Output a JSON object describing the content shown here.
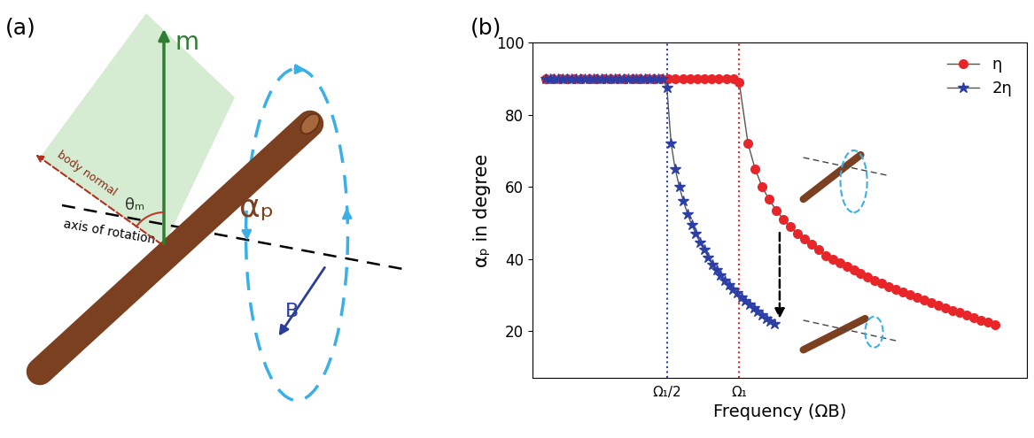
{
  "diagram": {
    "label": "(a)",
    "moment": "m",
    "angle": "θₘ",
    "body_normal": "body normal",
    "rotation_axis": "axis of rotation",
    "precession_angle": "αₚ",
    "field": "B"
  },
  "chart_data": {
    "type": "line",
    "panel_label": "(b)",
    "x_label": "Frequency (ΩB)",
    "y_label": "αₚ in degree",
    "xlim": [
      -0.43,
      2.99
    ],
    "ylim": [
      7,
      100
    ],
    "xticks": [
      {
        "value": 0.5,
        "label": "Ω₁/2"
      },
      {
        "value": 1,
        "label": "Ω₁"
      }
    ],
    "yticks": [
      20,
      40,
      60,
      80,
      100
    ],
    "legend": "upper right",
    "series": [
      {
        "name": "η",
        "color": "#e8262a",
        "marker": "circle",
        "x": [
          -0.34,
          -0.29,
          -0.24,
          -0.19,
          -0.14,
          -0.09,
          -0.04,
          0.01,
          0.06,
          0.11,
          0.16,
          0.21,
          0.26,
          0.31,
          0.36,
          0.41,
          0.46,
          0.51,
          0.56,
          0.61,
          0.66,
          0.71,
          0.76,
          0.81,
          0.86,
          0.91,
          0.96,
          1.0,
          1.061,
          1.11,
          1.159,
          1.207,
          1.256,
          1.305,
          1.354,
          1.402,
          1.451,
          1.5,
          1.549,
          1.598,
          1.646,
          1.695,
          1.744,
          1.793,
          1.841,
          1.89,
          1.939,
          1.988,
          2.037,
          2.085,
          2.134,
          2.183,
          2.232,
          2.28,
          2.329,
          2.378,
          2.427,
          2.476,
          2.524,
          2.573,
          2.622,
          2.671,
          2.72,
          2.768
        ],
        "values": [
          90,
          90,
          90,
          90,
          90,
          90,
          90,
          90,
          90,
          90,
          90,
          90,
          90,
          90,
          90,
          90,
          90,
          90,
          90,
          90,
          90,
          90,
          90,
          90,
          90,
          90,
          90,
          89,
          72,
          65,
          60,
          56.5,
          53.5,
          51,
          49,
          47,
          45.5,
          44,
          42.5,
          41,
          40,
          39,
          38,
          37,
          36,
          35,
          34,
          33.2,
          32.4,
          31.6,
          30.8,
          30,
          29.3,
          28.6,
          27.9,
          27.2,
          26.5,
          25.8,
          25.1,
          24.4,
          23.7,
          23,
          22.4,
          21.8
        ]
      },
      {
        "name": "2η",
        "color": "#2c3fa6",
        "marker": "star",
        "x": [
          -0.34,
          -0.31,
          -0.28,
          -0.25,
          -0.22,
          -0.19,
          -0.16,
          -0.13,
          -0.1,
          -0.07,
          -0.04,
          -0.01,
          0.02,
          0.05,
          0.08,
          0.11,
          0.14,
          0.17,
          0.2,
          0.23,
          0.26,
          0.29,
          0.32,
          0.35,
          0.38,
          0.41,
          0.44,
          0.47,
          0.5,
          0.529,
          0.557,
          0.586,
          0.614,
          0.643,
          0.671,
          0.7,
          0.729,
          0.757,
          0.786,
          0.814,
          0.843,
          0.871,
          0.9,
          0.929,
          0.957,
          0.986,
          1.014,
          1.043,
          1.071,
          1.1,
          1.129,
          1.157,
          1.186,
          1.214,
          1.243
        ],
        "values": [
          90,
          90,
          90,
          90,
          90,
          90,
          90,
          90,
          90,
          90,
          90,
          90,
          90,
          90,
          90,
          90,
          90,
          90,
          90,
          90,
          90,
          90,
          90,
          90,
          90,
          90,
          90,
          90,
          87.5,
          72,
          65,
          60,
          56,
          52.5,
          49.5,
          47,
          44.5,
          42.5,
          40.5,
          38.5,
          37,
          35.5,
          34,
          32.8,
          31.6,
          30.5,
          29.4,
          28.4,
          27.4,
          26.4,
          25.4,
          24.5,
          23.6,
          22.8,
          22
        ]
      }
    ]
  }
}
